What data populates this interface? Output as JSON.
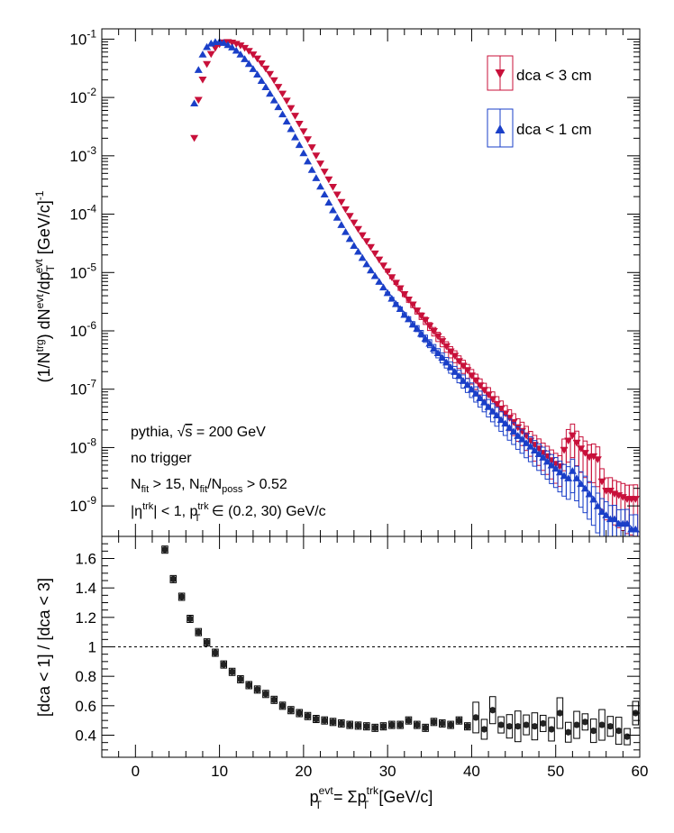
{
  "chart_data": [
    {
      "type": "scatter",
      "panel": "top",
      "ylabel": {
        "prefix": "(1/N",
        "sup1": "trg",
        "mid1": ") dN",
        "sup2": "evt",
        "mid2": "/dp",
        "sub3": "T",
        "sup3": "evt",
        "unit": " [GeV/c]",
        "sup4": "-1"
      },
      "xlim": [
        -4,
        60
      ],
      "ylim": [
        3e-10,
        0.15
      ],
      "yscale": "log",
      "yticks": [
        {
          "v": 1e-09,
          "base": "10",
          "exp": "-9"
        },
        {
          "v": 1e-08,
          "base": "10",
          "exp": "-8"
        },
        {
          "v": 1e-07,
          "base": "10",
          "exp": "-7"
        },
        {
          "v": 1e-06,
          "base": "10",
          "exp": "-6"
        },
        {
          "v": 1e-05,
          "base": "10",
          "exp": "-5"
        },
        {
          "v": 0.0001,
          "base": "10",
          "exp": "-4"
        },
        {
          "v": 0.001,
          "base": "10",
          "exp": "-3"
        },
        {
          "v": 0.01,
          "base": "10",
          "exp": "-2"
        },
        {
          "v": 0.1,
          "base": "10",
          "exp": "-1"
        }
      ],
      "legend": {
        "position": "top-right"
      },
      "series": [
        {
          "name": "dca < 3 cm",
          "marker": "triangle-down",
          "color": "#c8103a",
          "x": [
            7,
            7.5,
            8,
            8.5,
            9,
            9.5,
            10,
            10.5,
            11,
            11.5,
            12,
            12.5,
            13,
            13.5,
            14,
            14.5,
            15,
            15.5,
            16,
            16.5,
            17,
            17.5,
            18,
            18.5,
            19,
            19.5,
            20,
            20.5,
            21,
            21.5,
            22,
            22.5,
            23,
            23.5,
            24,
            24.5,
            25,
            25.5,
            26,
            26.5,
            27,
            27.5,
            28,
            28.5,
            29,
            29.5,
            30,
            30.5,
            31,
            31.5,
            32,
            32.5,
            33,
            33.5,
            34,
            34.5,
            35,
            35.5,
            36,
            36.5,
            37,
            37.5,
            38,
            38.5,
            39,
            39.5,
            40,
            40.5,
            41,
            41.5,
            42,
            42.5,
            43,
            43.5,
            44,
            44.5,
            45,
            45.5,
            46,
            46.5,
            47,
            47.5,
            48,
            48.5,
            49,
            49.5,
            50,
            50.5,
            51,
            51.5,
            52,
            52.5,
            53,
            53.5,
            54,
            54.5,
            55,
            55.5,
            56,
            56.5,
            57,
            57.5,
            58,
            58.5,
            59,
            59.5
          ],
          "y": [
            0.002,
            0.009,
            0.02,
            0.037,
            0.055,
            0.07,
            0.081,
            0.087,
            0.088,
            0.086,
            0.082,
            0.077,
            0.07,
            0.062,
            0.054,
            0.046,
            0.038,
            0.031,
            0.025,
            0.0195,
            0.015,
            0.0115,
            0.0087,
            0.0065,
            0.0048,
            0.0035,
            0.0026,
            0.0019,
            0.00138,
            0.001,
            0.00073,
            0.00053,
            0.00039,
            0.00029,
            0.000215,
            0.00016,
            0.00012,
            9.2e-05,
            7.1e-05,
            5.5e-05,
            4.3e-05,
            3.4e-05,
            2.7e-05,
            2.1e-05,
            1.65e-05,
            1.3e-05,
            1.04e-05,
            8.2e-06,
            6.6e-06,
            5.3e-06,
            4.2e-06,
            3.4e-06,
            2.8e-06,
            2.2e-06,
            1.8e-06,
            1.5e-06,
            1.2e-06,
            9.8e-07,
            8e-07,
            6.6e-07,
            5.4e-07,
            4.4e-07,
            3.7e-07,
            3e-07,
            2.5e-07,
            2.1e-07,
            1.7e-07,
            1.4e-07,
            1.15e-07,
            9.6e-08,
            8e-08,
            6.7e-08,
            5.5e-08,
            4.6e-08,
            3.8e-08,
            3.2e-08,
            2.7e-08,
            2.2e-08,
            1.9e-08,
            1.6e-08,
            1.3e-08,
            1.1e-08,
            9.5e-09,
            8e-09,
            7e-09,
            6e-09,
            5.2e-09,
            4.7e-09,
            9e-09,
            1.3e-08,
            1.6e-08,
            1.2e-08,
            9.5e-09,
            8e-09,
            6.8e-09,
            7e-09,
            6.2e-09,
            2.6e-09,
            1.8e-09,
            1.8e-09,
            1.6e-09,
            1.5e-09,
            1.4e-09,
            1.3e-09,
            1.3e-09,
            1.3e-09
          ]
        },
        {
          "name": "dca < 1 cm",
          "marker": "triangle-up",
          "color": "#1a3fc8",
          "x": [
            7,
            7.5,
            8,
            8.5,
            9,
            9.5,
            10,
            10.5,
            11,
            11.5,
            12,
            12.5,
            13,
            13.5,
            14,
            14.5,
            15,
            15.5,
            16,
            16.5,
            17,
            17.5,
            18,
            18.5,
            19,
            19.5,
            20,
            20.5,
            21,
            21.5,
            22,
            22.5,
            23,
            23.5,
            24,
            24.5,
            25,
            25.5,
            26,
            26.5,
            27,
            27.5,
            28,
            28.5,
            29,
            29.5,
            30,
            30.5,
            31,
            31.5,
            32,
            32.5,
            33,
            33.5,
            34,
            34.5,
            35,
            35.5,
            36,
            36.5,
            37,
            37.5,
            38,
            38.5,
            39,
            39.5,
            40,
            40.5,
            41,
            41.5,
            42,
            42.5,
            43,
            43.5,
            44,
            44.5,
            45,
            45.5,
            46,
            46.5,
            47,
            47.5,
            48,
            48.5,
            49,
            49.5,
            50,
            50.5,
            51,
            51.5,
            52,
            52.5,
            53,
            53.5,
            54,
            54.5,
            55,
            55.5,
            56,
            56.5,
            57,
            57.5,
            58,
            58.5,
            59,
            59.5
          ],
          "y": [
            0.008,
            0.03,
            0.055,
            0.074,
            0.085,
            0.09,
            0.091,
            0.087,
            0.08,
            0.073,
            0.064,
            0.055,
            0.046,
            0.038,
            0.031,
            0.025,
            0.0195,
            0.0152,
            0.0117,
            0.009,
            0.0069,
            0.0052,
            0.0039,
            0.0029,
            0.0021,
            0.00155,
            0.00112,
            0.00081,
            0.00058,
            0.00042,
            0.0003,
            0.00022,
            0.00016,
            0.000118,
            8.8e-05,
            6.6e-05,
            5e-05,
            3.8e-05,
            2.9e-05,
            2.3e-05,
            1.8e-05,
            1.4e-05,
            1.1e-05,
            8.8e-06,
            7e-06,
            5.6e-06,
            4.5e-06,
            3.6e-06,
            2.9e-06,
            2.4e-06,
            1.9e-06,
            1.6e-06,
            1.3e-06,
            1.1e-06,
            9e-07,
            7.4e-07,
            6.1e-07,
            5e-07,
            4.2e-07,
            3.5e-07,
            2.9e-07,
            2.4e-07,
            2e-07,
            1.7e-07,
            1.4e-07,
            1.2e-07,
            1e-07,
            8.5e-08,
            7.1e-08,
            6e-08,
            5e-08,
            4.2e-08,
            3.6e-08,
            3e-08,
            2.6e-08,
            2.2e-08,
            1.9e-08,
            1.6e-08,
            1.4e-08,
            1.2e-08,
            1.05e-08,
            9e-09,
            7.8e-09,
            6.8e-09,
            5.8e-09,
            5e-09,
            4.4e-09,
            3.8e-09,
            3.3e-09,
            3e-09,
            4e-09,
            3e-09,
            2.4e-09,
            2e-09,
            1.6e-09,
            1.3e-09,
            1e-09,
            8e-10,
            7e-10,
            6e-10,
            6e-10,
            5e-10,
            5e-10,
            5e-10,
            4e-10,
            4e-10
          ]
        }
      ],
      "annotations": {
        "line1": {
          "a": "pythia, ",
          "root": "s",
          "b": " = 200 GeV"
        },
        "line2": "no trigger",
        "line3": {
          "a": "N",
          "a_sub": "fit",
          "b": " > 15, N",
          "b_sub": "fit",
          "c": "/N",
          "c_sub": "poss",
          "d": " > 0.52"
        },
        "line4": {
          "a": "|η",
          "a_sup": "trk",
          "b": "| < 1, p",
          "b_sub": "T",
          "b_sup": "trk",
          "c": " ∈ (0.2, 30) GeV/c"
        }
      }
    },
    {
      "type": "scatter",
      "panel": "bottom",
      "ylabel": "[dca < 1] / [dca < 3]",
      "xlabel": {
        "a": "p",
        "a_sub": "T",
        "a_sup": "evt",
        "b": " = Σp",
        "b_sub": "T",
        "b_sup": "trk",
        "c": " [GeV/c]"
      },
      "xlim": [
        -4,
        60
      ],
      "xticks": [
        0,
        10,
        20,
        30,
        40,
        50,
        60
      ],
      "ylim": [
        0.25,
        1.75
      ],
      "yticks": [
        0.4,
        0.6,
        0.8,
        1,
        1.2,
        1.4,
        1.6
      ],
      "reference_line": 1,
      "series": [
        {
          "name": "",
          "marker": "circle",
          "color": "#222222",
          "x": [
            3.5,
            4.5,
            5.5,
            6.5,
            7.5,
            8.5,
            9.5,
            10.5,
            11.5,
            12.5,
            13.5,
            14.5,
            15.5,
            16.5,
            17.5,
            18.5,
            19.5,
            20.5,
            21.5,
            22.5,
            23.5,
            24.5,
            25.5,
            26.5,
            27.5,
            28.5,
            29.5,
            30.5,
            31.5,
            32.5,
            33.5,
            34.5,
            35.5,
            36.5,
            37.5,
            38.5,
            39.5,
            40.5,
            41.5,
            42.5,
            43.5,
            44.5,
            45.5,
            46.5,
            47.5,
            48.5,
            49.5,
            50.5,
            51.5,
            52.5,
            53.5,
            54.5,
            55.5,
            56.5,
            57.5,
            58.5,
            59.5
          ],
          "y": [
            1.66,
            1.46,
            1.34,
            1.19,
            1.1,
            1.03,
            0.96,
            0.88,
            0.83,
            0.78,
            0.74,
            0.71,
            0.68,
            0.64,
            0.6,
            0.57,
            0.55,
            0.53,
            0.51,
            0.5,
            0.49,
            0.48,
            0.47,
            0.465,
            0.46,
            0.45,
            0.46,
            0.47,
            0.47,
            0.5,
            0.47,
            0.45,
            0.49,
            0.48,
            0.47,
            0.5,
            0.46,
            0.52,
            0.44,
            0.57,
            0.47,
            0.46,
            0.46,
            0.47,
            0.46,
            0.48,
            0.44,
            0.55,
            0.42,
            0.47,
            0.49,
            0.43,
            0.47,
            0.46,
            0.43,
            0.39,
            0.55
          ]
        }
      ]
    }
  ]
}
